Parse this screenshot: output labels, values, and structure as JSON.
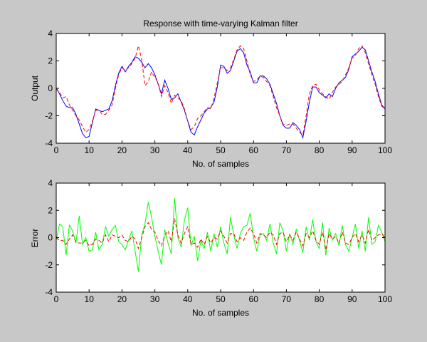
{
  "figure": {
    "background": "#c8c8c8",
    "axes_background": "#ffffff"
  },
  "chart_data": [
    {
      "type": "line",
      "title": "Response with time-varying Kalman filter",
      "xlabel": "No. of samples",
      "ylabel": "Output",
      "xlim": [
        0,
        100
      ],
      "ylim": [
        -4,
        4
      ],
      "xticks": [
        "0",
        "10",
        "20",
        "30",
        "40",
        "50",
        "60",
        "70",
        "80",
        "90",
        "100"
      ],
      "yticks": [
        "4",
        "2",
        "0",
        "-2",
        "-4"
      ],
      "grid": false,
      "series": [
        {
          "color": "#0000ff",
          "style": "solid",
          "x": [
            0,
            1,
            2,
            3,
            4,
            5,
            6,
            7,
            8,
            9,
            10,
            11,
            12,
            13,
            14,
            15,
            16,
            17,
            18,
            19,
            20,
            21,
            22,
            23,
            24,
            25,
            26,
            27,
            28,
            29,
            30,
            31,
            32,
            33,
            34,
            35,
            36,
            37,
            38,
            39,
            40,
            41,
            42,
            43,
            44,
            45,
            46,
            47,
            48,
            49,
            50,
            51,
            52,
            53,
            54,
            55,
            56,
            57,
            58,
            59,
            60,
            61,
            62,
            63,
            64,
            65,
            66,
            67,
            68,
            69,
            70,
            71,
            72,
            73,
            74,
            75,
            76,
            77,
            78,
            79,
            80,
            81,
            82,
            83,
            84,
            85,
            86,
            87,
            88,
            89,
            90,
            91,
            92,
            93,
            94,
            95,
            96,
            97,
            98,
            99,
            100
          ],
          "y": [
            0,
            -0.4,
            -0.9,
            -1.3,
            -1.4,
            -1.4,
            -1.9,
            -2.6,
            -3.3,
            -3.6,
            -3.5,
            -2.5,
            -1.5,
            -1.6,
            -1.7,
            -1.6,
            -1.5,
            -0.9,
            0.2,
            1.1,
            1.6,
            1.2,
            1.6,
            1.9,
            2.3,
            2.2,
            1.9,
            1.5,
            1.8,
            1.5,
            1.0,
            0.3,
            -0.4,
            0.6,
            0.0,
            -0.8,
            -0.7,
            -0.4,
            -1.0,
            -1.6,
            -2.4,
            -3.2,
            -3.4,
            -2.8,
            -2.3,
            -1.8,
            -1.5,
            -1.4,
            -1.0,
            0.1,
            1.7,
            1.6,
            1.1,
            1.3,
            2.0,
            2.7,
            2.9,
            2.6,
            1.7,
            1.2,
            0.4,
            0.4,
            0.9,
            0.9,
            0.7,
            0.3,
            -0.4,
            -1.1,
            -2.0,
            -2.7,
            -2.9,
            -2.9,
            -2.5,
            -2.7,
            -3.0,
            -3.6,
            -2.4,
            -1.0,
            0.1,
            0.1,
            -0.3,
            -0.5,
            -0.7,
            -0.4,
            -0.6,
            0.0,
            0.4,
            0.6,
            0.8,
            1.4,
            2.3,
            2.5,
            2.7,
            3.0,
            2.8,
            2.0,
            1.2,
            0.5,
            -0.4,
            -1.2,
            -1.5
          ]
        },
        {
          "color": "#ff0000",
          "style": "dashed",
          "x": [
            0,
            1,
            2,
            3,
            4,
            5,
            6,
            7,
            8,
            9,
            10,
            11,
            12,
            13,
            14,
            15,
            16,
            17,
            18,
            19,
            20,
            21,
            22,
            23,
            24,
            25,
            26,
            27,
            28,
            29,
            30,
            31,
            32,
            33,
            34,
            35,
            36,
            37,
            38,
            39,
            40,
            41,
            42,
            43,
            44,
            45,
            46,
            47,
            48,
            49,
            50,
            51,
            52,
            53,
            54,
            55,
            56,
            57,
            58,
            59,
            60,
            61,
            62,
            63,
            64,
            65,
            66,
            67,
            68,
            69,
            70,
            71,
            72,
            73,
            74,
            75,
            76,
            77,
            78,
            79,
            80,
            81,
            82,
            83,
            84,
            85,
            86,
            87,
            88,
            89,
            90,
            91,
            92,
            93,
            94,
            95,
            96,
            97,
            98,
            99,
            100
          ],
          "y": [
            0,
            -0.3,
            -0.7,
            -0.6,
            -1.2,
            -1.6,
            -2.0,
            -2.3,
            -2.8,
            -3.2,
            -3.0,
            -2.4,
            -1.6,
            -1.6,
            -1.9,
            -1.9,
            -1.6,
            -1.2,
            0.0,
            1.0,
            1.5,
            1.3,
            1.5,
            1.8,
            2.2,
            3.1,
            2.1,
            0.2,
            0.5,
            1.2,
            0.8,
            0.4,
            -0.6,
            0.2,
            -0.3,
            -1.1,
            -0.5,
            -0.7,
            -0.9,
            -1.5,
            -2.4,
            -3.0,
            -2.8,
            -2.2,
            -2.0,
            -1.7,
            -1.4,
            -1.5,
            -0.7,
            0.4,
            1.5,
            1.5,
            1.3,
            1.5,
            2.1,
            2.8,
            3.1,
            2.9,
            2.0,
            1.0,
            0.5,
            0.6,
            0.9,
            0.8,
            0.5,
            0.2,
            -0.6,
            -1.4,
            -2.0,
            -2.6,
            -2.7,
            -2.6,
            -2.6,
            -2.9,
            -3.2,
            -3.4,
            -2.0,
            -0.4,
            0.2,
            0.3,
            -0.1,
            -0.4,
            -0.6,
            -0.8,
            -0.3,
            0.1,
            0.3,
            0.5,
            1.0,
            1.5,
            2.2,
            2.4,
            2.9,
            3.1,
            2.6,
            1.8,
            1.0,
            0.3,
            -0.6,
            -1.3,
            -1.5
          ]
        }
      ]
    },
    {
      "type": "line",
      "title": "",
      "xlabel": "No. of samples",
      "ylabel": "Error",
      "xlim": [
        0,
        100
      ],
      "ylim": [
        -4,
        4
      ],
      "xticks": [
        "0",
        "10",
        "20",
        "30",
        "40",
        "50",
        "60",
        "70",
        "80",
        "90",
        "100"
      ],
      "yticks": [
        "4",
        "2",
        "0",
        "-2",
        "-4"
      ],
      "grid": false,
      "series": [
        {
          "color": "#00ff00",
          "style": "solid",
          "x": [
            0,
            1,
            2,
            3,
            4,
            5,
            6,
            7,
            8,
            9,
            10,
            11,
            12,
            13,
            14,
            15,
            16,
            17,
            18,
            19,
            20,
            21,
            22,
            23,
            24,
            25,
            26,
            27,
            28,
            29,
            30,
            31,
            32,
            33,
            34,
            35,
            36,
            37,
            38,
            39,
            40,
            41,
            42,
            43,
            44,
            45,
            46,
            47,
            48,
            49,
            50,
            51,
            52,
            53,
            54,
            55,
            56,
            57,
            58,
            59,
            60,
            61,
            62,
            63,
            64,
            65,
            66,
            67,
            68,
            69,
            70,
            71,
            72,
            73,
            74,
            75,
            76,
            77,
            78,
            79,
            80,
            81,
            82,
            83,
            84,
            85,
            86,
            87,
            88,
            89,
            90,
            91,
            92,
            93,
            94,
            95,
            96,
            97,
            98,
            99,
            100
          ],
          "y": [
            -0.2,
            1.0,
            0.8,
            -1.3,
            0.9,
            0.5,
            -0.4,
            1.6,
            -0.5,
            0.0,
            -1.0,
            -0.9,
            0.4,
            -0.9,
            -0.5,
            0.8,
            0.1,
            0.6,
            0.9,
            -0.3,
            -0.5,
            -0.9,
            -0.2,
            0.5,
            -1.0,
            -2.5,
            0.2,
            1.0,
            2.6,
            1.5,
            0.1,
            -1.0,
            -2.0,
            0.6,
            -0.4,
            -1.2,
            2.9,
            0.0,
            -0.7,
            1.3,
            2.2,
            -0.6,
            0.1,
            -1.7,
            -0.2,
            -0.8,
            0.4,
            -1.0,
            0.3,
            -0.7,
            0.8,
            -0.4,
            -1.2,
            1.5,
            0.2,
            -0.8,
            0.3,
            0.8,
            0.9,
            1.8,
            0.0,
            -1.0,
            0.2,
            0.3,
            -0.2,
            1.0,
            -0.4,
            -1.2,
            1.1,
            0.5,
            -1.0,
            0.3,
            -0.5,
            0.6,
            -0.2,
            -1.1,
            0.8,
            -0.2,
            1.3,
            -0.3,
            -0.8,
            1.1,
            -1.3,
            0.7,
            -0.2,
            0.3,
            -0.6,
            0.9,
            -0.5,
            -1.0,
            0.0,
            1.0,
            -0.8,
            0.5,
            -1.0,
            1.5,
            -0.5,
            -0.3,
            0.9,
            0.4,
            -0.3
          ]
        },
        {
          "color": "#ff0000",
          "style": "dashed",
          "x": [
            0,
            1,
            2,
            3,
            4,
            5,
            6,
            7,
            8,
            9,
            10,
            11,
            12,
            13,
            14,
            15,
            16,
            17,
            18,
            19,
            20,
            21,
            22,
            23,
            24,
            25,
            26,
            27,
            28,
            29,
            30,
            31,
            32,
            33,
            34,
            35,
            36,
            37,
            38,
            39,
            40,
            41,
            42,
            43,
            44,
            45,
            46,
            47,
            48,
            49,
            50,
            51,
            52,
            53,
            54,
            55,
            56,
            57,
            58,
            59,
            60,
            61,
            62,
            63,
            64,
            65,
            66,
            67,
            68,
            69,
            70,
            71,
            72,
            73,
            74,
            75,
            76,
            77,
            78,
            79,
            80,
            81,
            82,
            83,
            84,
            85,
            86,
            87,
            88,
            89,
            90,
            91,
            92,
            93,
            94,
            95,
            96,
            97,
            98,
            99,
            100
          ],
          "y": [
            0.0,
            -0.2,
            -0.2,
            -0.5,
            -0.1,
            0.2,
            -0.3,
            -0.4,
            -0.4,
            -0.2,
            -0.6,
            -0.5,
            -0.1,
            -0.2,
            -0.4,
            0.2,
            -0.3,
            0.2,
            0.1,
            0.0,
            0.2,
            -0.2,
            -0.3,
            0.1,
            -0.1,
            -0.8,
            0.0,
            0.8,
            1.1,
            0.6,
            0.4,
            -0.2,
            -0.6,
            0.1,
            0.5,
            -0.3,
            1.4,
            0.2,
            -0.4,
            0.3,
            0.8,
            -0.5,
            -0.4,
            -0.7,
            -0.1,
            -0.5,
            0.1,
            -0.4,
            0.0,
            -0.1,
            0.5,
            0.1,
            -0.4,
            0.3,
            0.3,
            -0.3,
            0.0,
            -0.2,
            0.4,
            0.7,
            0.3,
            -0.4,
            0.3,
            0.2,
            0.0,
            0.4,
            0.2,
            -0.5,
            0.3,
            0.4,
            -0.3,
            0.2,
            -0.2,
            0.4,
            -0.1,
            -0.6,
            0.3,
            0.0,
            0.5,
            -0.2,
            -0.5,
            0.4,
            -0.9,
            0.3,
            -0.1,
            0.1,
            -0.4,
            0.4,
            -0.4,
            -0.5,
            0.0,
            0.3,
            -0.3,
            0.2,
            -0.4,
            0.6,
            -0.2,
            0.0,
            0.2,
            0.3,
            0.0
          ]
        }
      ]
    }
  ]
}
